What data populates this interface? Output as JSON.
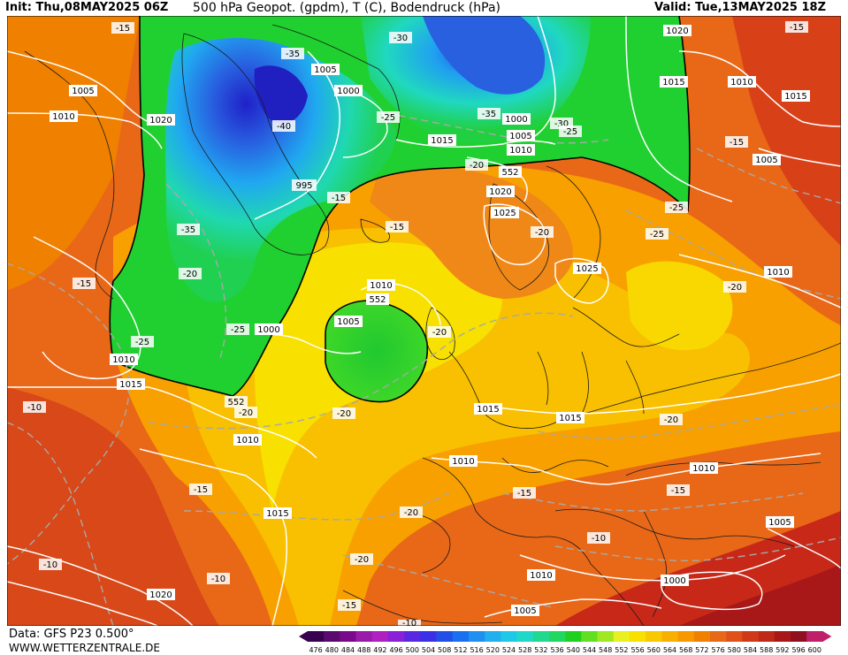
{
  "header": {
    "init": "Init: Thu,08MAY2025 06Z",
    "title": "500 hPa Geopot. (gpdm), T (C), Bodendruck (hPa)",
    "valid": "Valid: Tue,13MAY2025 18Z"
  },
  "footer": {
    "data_source": "Data: GFS P23 0.500°",
    "site": "WWW.WETTERZENTRALE.DE"
  },
  "colorbar": {
    "values": [
      "476",
      "480",
      "484",
      "488",
      "492",
      "496",
      "500",
      "504",
      "508",
      "512",
      "516",
      "520",
      "524",
      "528",
      "532",
      "536",
      "540",
      "544",
      "548",
      "552",
      "556",
      "560",
      "564",
      "568",
      "572",
      "576",
      "580",
      "584",
      "588",
      "592",
      "596",
      "600"
    ],
    "colors": [
      "#3a0050",
      "#5a0a6e",
      "#7a0a8c",
      "#9a1aaa",
      "#b020c0",
      "#8a20d8",
      "#5a28e0",
      "#3a30e8",
      "#2050e8",
      "#1870f0",
      "#2090f0",
      "#20b0f0",
      "#20c8e8",
      "#20d8c8",
      "#20d890",
      "#20d860",
      "#20d020",
      "#60e020",
      "#a0e820",
      "#e8f020",
      "#f8e000",
      "#f8c800",
      "#f8b000",
      "#f89800",
      "#f08000",
      "#e86818",
      "#e05018",
      "#d03818",
      "#c02818",
      "#a81818",
      "#901020",
      "#c0206a"
    ]
  },
  "map": {
    "contour_labels": [
      {
        "text": "-15"
      },
      {
        "text": "1005"
      },
      {
        "text": "1010"
      },
      {
        "text": "1020"
      },
      {
        "text": "-35"
      },
      {
        "text": "1005"
      },
      {
        "text": "1000"
      },
      {
        "text": "-40"
      },
      {
        "text": "-30"
      },
      {
        "text": "-25"
      },
      {
        "text": "-35"
      },
      {
        "text": "1000"
      },
      {
        "text": "-30"
      },
      {
        "text": "1005"
      },
      {
        "text": "-25"
      },
      {
        "text": "1010"
      },
      {
        "text": "1015"
      },
      {
        "text": "-20"
      },
      {
        "text": "552"
      },
      {
        "text": "1020"
      },
      {
        "text": "1025"
      },
      {
        "text": "-15"
      },
      {
        "text": "995"
      },
      {
        "text": "-35"
      },
      {
        "text": "-15"
      },
      {
        "text": "-20"
      },
      {
        "text": "1020"
      },
      {
        "text": "1015"
      },
      {
        "text": "1010"
      },
      {
        "text": "-15"
      },
      {
        "text": "-15"
      },
      {
        "text": "1015"
      },
      {
        "text": "1005"
      },
      {
        "text": "-25"
      },
      {
        "text": "-25"
      },
      {
        "text": "-20"
      },
      {
        "text": "1025"
      },
      {
        "text": "-20"
      },
      {
        "text": "-15"
      },
      {
        "text": "1010"
      },
      {
        "text": "1010"
      },
      {
        "text": "552"
      },
      {
        "text": "1005"
      },
      {
        "text": "-20"
      },
      {
        "text": "1000"
      },
      {
        "text": "-25"
      },
      {
        "text": "-25"
      },
      {
        "text": "1010"
      },
      {
        "text": "1015"
      },
      {
        "text": "552"
      },
      {
        "text": "-20"
      },
      {
        "text": "-10"
      },
      {
        "text": "1010"
      },
      {
        "text": "-20"
      },
      {
        "text": "1015"
      },
      {
        "text": "1015"
      },
      {
        "text": "-20"
      },
      {
        "text": "1010"
      },
      {
        "text": "-15"
      },
      {
        "text": "-15"
      },
      {
        "text": "1010"
      },
      {
        "text": "-15"
      },
      {
        "text": "1015"
      },
      {
        "text": "-20"
      },
      {
        "text": "-10"
      },
      {
        "text": "-20"
      },
      {
        "text": "1010"
      },
      {
        "text": "-10"
      },
      {
        "text": "1020"
      },
      {
        "text": "-10"
      },
      {
        "text": "-15"
      },
      {
        "text": "1005"
      },
      {
        "text": "1000"
      },
      {
        "text": "1005"
      },
      {
        "text": "-10"
      }
    ]
  }
}
